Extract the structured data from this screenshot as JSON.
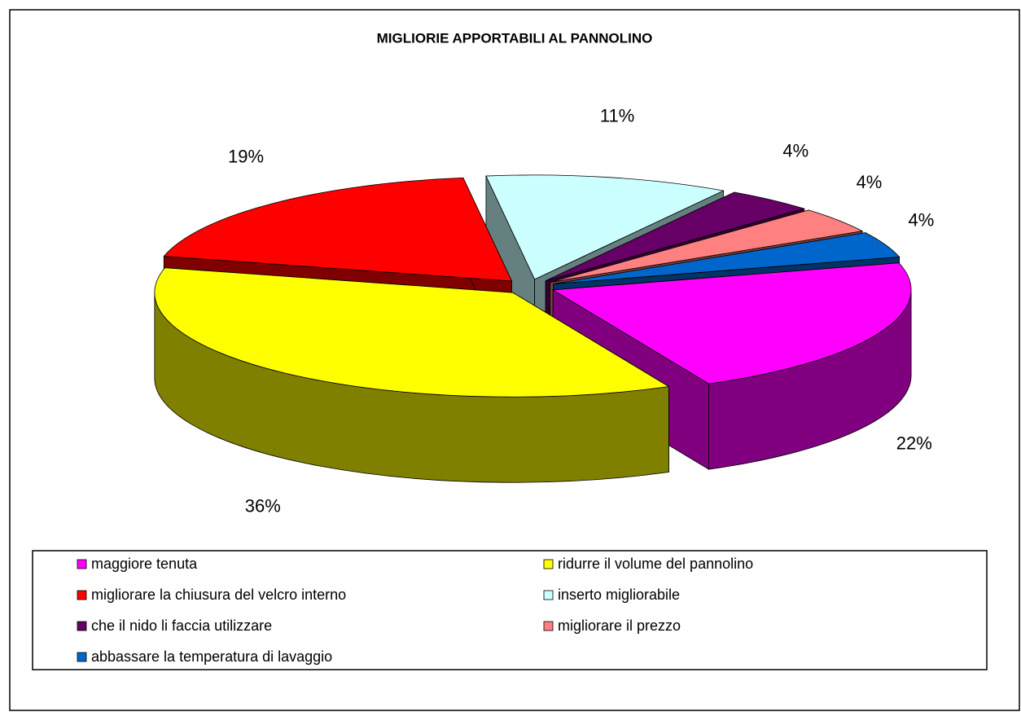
{
  "chart_data": {
    "type": "pie3d",
    "title": "MIGLIORIE APPORTABILI AL PANNOLINO",
    "categories": [
      "maggiore tenuta",
      "ridurre il volume del pannolino",
      "migliorare la chiusura del velcro interno",
      "inserto migliorabile",
      "che il nido li faccia utilizzare",
      "migliorare il prezzo",
      "abbassare la temperatura di lavaggio"
    ],
    "values": [
      22,
      36,
      19,
      11,
      4,
      4,
      4
    ],
    "value_labels": [
      "22%",
      "36%",
      "19%",
      "11%",
      "4%",
      "4%",
      "4%"
    ],
    "colors": [
      "#ff00ff",
      "#ffff00",
      "#ff0000",
      "#ccffff",
      "#660066",
      "#ff8080",
      "#0066cc"
    ],
    "legend": "bottom"
  }
}
